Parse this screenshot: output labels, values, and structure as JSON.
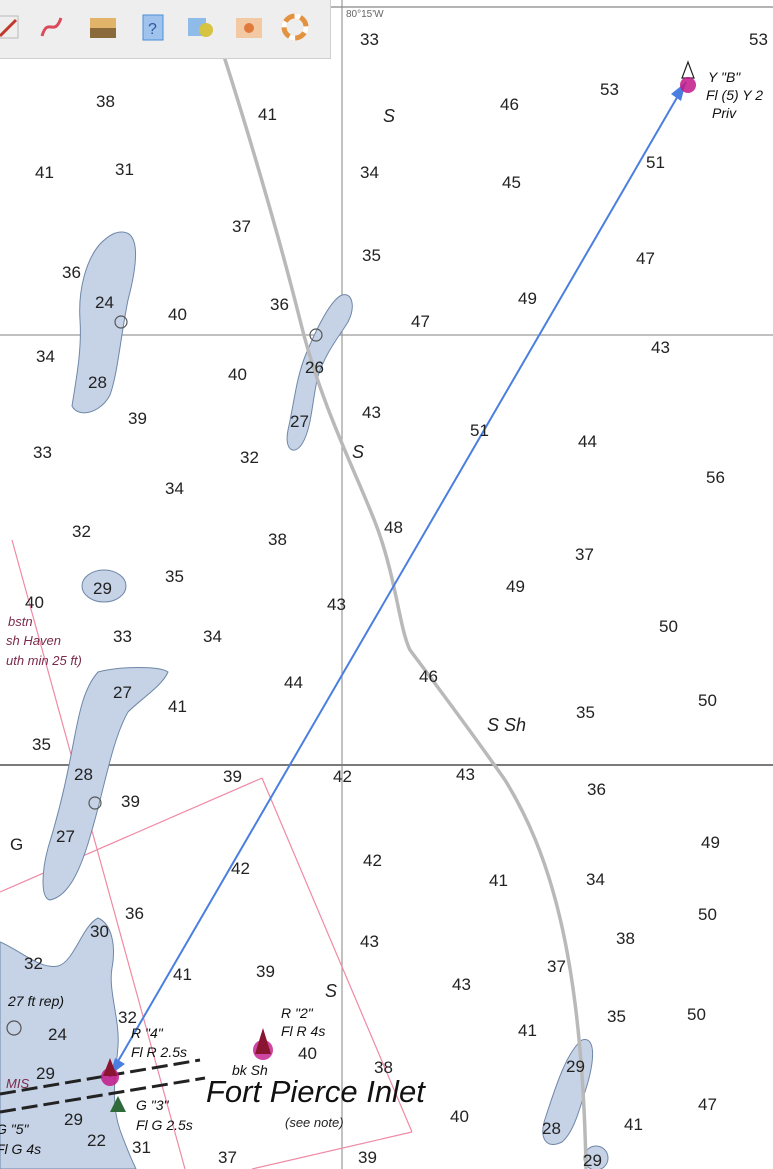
{
  "coordinate_label": "80°15'W",
  "toolbar": {
    "buttons": [
      {
        "icon": "ruler-icon",
        "color": "#c0392b"
      },
      {
        "icon": "route-icon",
        "color": "#d94a5a"
      },
      {
        "icon": "layer-icon",
        "color": "#c98b2b"
      },
      {
        "icon": "info-icon",
        "color": "#4a8fd8"
      },
      {
        "icon": "marker-icon",
        "color": "#d6c341"
      },
      {
        "icon": "camera-icon",
        "color": "#e07a3a"
      },
      {
        "icon": "lifebuoy-icon",
        "color": "#e39240"
      }
    ]
  },
  "depths": {
    "d1": "33",
    "d2": "53",
    "d3": "38",
    "d4": "41",
    "d5": "46",
    "d6": "53",
    "d7": "41",
    "d8": "31",
    "d9": "34",
    "d10": "45",
    "d11": "51",
    "d12": "37",
    "d13": "35",
    "d14": "47",
    "d15": "36",
    "d16": "24",
    "d17": "40",
    "d18": "36",
    "d19": "47",
    "d20": "49",
    "d21": "34",
    "d22": "28",
    "d23": "40",
    "d24": "26",
    "d25": "43",
    "d26": "39",
    "d27": "27",
    "d28": "43",
    "d29": "51",
    "d30": "44",
    "d31": "33",
    "d32": "32",
    "d33": "56",
    "d34": "34",
    "d35": "32",
    "d36": "38",
    "d37": "48",
    "d38": "37",
    "d39": "29",
    "d40": "35",
    "d41": "49",
    "d42": "40",
    "d43": "33",
    "d44": "34",
    "d45": "43",
    "d46": "50",
    "d47": "27",
    "d48": "44",
    "d49": "46",
    "d50": "41",
    "d51": "35",
    "d52": "50",
    "d53": "35",
    "d54": "28",
    "d55": "39",
    "d56": "42",
    "d57": "43",
    "d58": "36",
    "d59": "39",
    "d60": "27",
    "d61": "49",
    "d62": "42",
    "d63": "42",
    "d64": "41",
    "d65": "34",
    "d66": "36",
    "d67": "30",
    "d68": "50",
    "d69": "38",
    "d70": "43",
    "d71": "32",
    "d72": "41",
    "d73": "39",
    "d74": "43",
    "d75": "37",
    "d76": "24",
    "d77": "32",
    "d78": "41",
    "d79": "35",
    "d80": "50",
    "d81": "29",
    "d82": "40",
    "d83": "38",
    "d84": "29",
    "d85": "29",
    "d86": "22",
    "d87": "31",
    "d88": "40",
    "d89": "28",
    "d90": "41",
    "d91": "47",
    "d92": "37",
    "d93": "39",
    "d94": "29",
    "d95": "40",
    "d96": "G"
  },
  "bottom_notes": {
    "s1": "S",
    "s2": "S",
    "s3": "S Sh",
    "s4": "S",
    "s5": "bk Sh"
  },
  "labels": {
    "buoy_b_name": "Y \"B\"",
    "buoy_b_light": "Fl (5) Y 2",
    "buoy_b_priv": "Priv",
    "buoy_r4_name": "R \"4\"",
    "buoy_r4_light": "Fl R 2.5s",
    "buoy_r2_name": "R \"2\"",
    "buoy_r2_light": "Fl R 4s",
    "buoy_g3_name": "G \"3\"",
    "buoy_g3_light": "Fl G 2.5s",
    "buoy_g5_name": "G \"5\"",
    "buoy_g5_light": "Fl G 4s",
    "report": "27 ft rep)",
    "bstn": "bstn",
    "haven": "sh Haven",
    "depth_note": "uth min 25 ft)",
    "inlet_name": "Fort Pierce Inlet",
    "see_note": "(see note)",
    "mis": "MIS"
  }
}
